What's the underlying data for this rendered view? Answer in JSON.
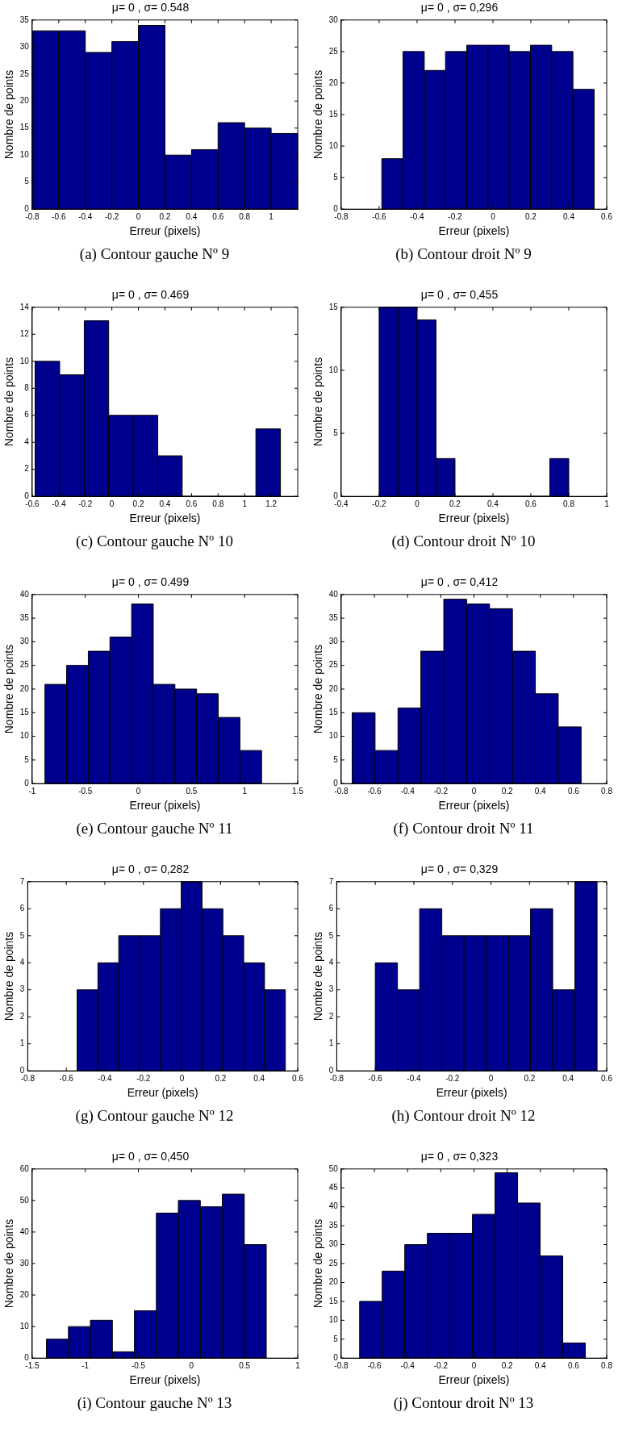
{
  "chart_data": [
    {
      "type": "histogram",
      "title": "μ= 0 , σ= 0.548",
      "xlabel": "Erreur (pixels)",
      "ylabel": "Nombre de points",
      "color": "#00008f",
      "bins": [
        -0.8,
        -0.6,
        -0.4,
        -0.2,
        0,
        0.2,
        0.4,
        0.6,
        0.8,
        1,
        1.2
      ],
      "values": [
        33,
        33,
        29,
        31,
        34,
        10,
        11,
        16,
        15,
        14
      ],
      "xlim": [
        -0.8,
        1.2
      ],
      "xticks": [
        -0.8,
        -0.6,
        -0.4,
        -0.2,
        0,
        0.2,
        0.4,
        0.6,
        0.8,
        1
      ],
      "ylim": [
        0,
        35
      ],
      "yticks": [
        0,
        5,
        10,
        15,
        20,
        25,
        30,
        35
      ],
      "annotations": [
        "(a) Contour gauche Nº 9"
      ]
    },
    {
      "type": "histogram",
      "title": "μ= 0 , σ= 0,296",
      "xlabel": "Erreur (pixels)",
      "ylabel": "Nombre de points",
      "color": "#00008f",
      "bins": [
        -0.586,
        -0.474,
        -0.362,
        -0.25,
        -0.138,
        -0.026,
        0.086,
        0.198,
        0.31,
        0.422,
        0.534
      ],
      "values": [
        8,
        25,
        22,
        25,
        26,
        26,
        25,
        26,
        25,
        19
      ],
      "xlim": [
        -0.8,
        0.6
      ],
      "xticks": [
        -0.8,
        -0.6,
        -0.4,
        -0.2,
        0,
        0.2,
        0.4,
        0.6
      ],
      "ylim": [
        0,
        30
      ],
      "yticks": [
        0,
        5,
        10,
        15,
        20,
        25,
        30
      ],
      "annotations": [
        "(b) Contour droit Nº 9"
      ]
    },
    {
      "type": "histogram",
      "title": "μ= 0 , σ= 0.469",
      "xlabel": "Erreur (pixels)",
      "ylabel": "Nombre de points",
      "color": "#00008f",
      "bins": [
        -0.578,
        -0.393,
        -0.208,
        -0.024,
        0.161,
        0.346,
        0.53,
        0.715,
        0.9,
        1.085,
        1.27
      ],
      "values": [
        10,
        9,
        13,
        6,
        6,
        3,
        0,
        0,
        0,
        5
      ],
      "xlim": [
        -0.6,
        1.4
      ],
      "xticks": [
        -0.6,
        -0.4,
        -0.2,
        0,
        0.2,
        0.4,
        0.6,
        0.8,
        1,
        1.2
      ],
      "ylim": [
        0,
        14
      ],
      "yticks": [
        0,
        2,
        4,
        6,
        8,
        10,
        12,
        14
      ],
      "annotations": [
        "(c) Contour gauche Nº 10"
      ]
    },
    {
      "type": "histogram",
      "title": "μ= 0 , σ= 0,455",
      "xlabel": "Erreur (pixels)",
      "ylabel": "Nombre de points",
      "color": "#00008f",
      "bins": [
        -0.2,
        -0.1,
        0,
        0.1,
        0.2,
        0.3,
        0.4,
        0.5,
        0.6,
        0.7,
        0.8
      ],
      "values": [
        15,
        15,
        14,
        3,
        0,
        0,
        0,
        0,
        0,
        3
      ],
      "xlim": [
        -0.4,
        1
      ],
      "xticks": [
        -0.4,
        -0.2,
        0,
        0.2,
        0.4,
        0.6,
        0.8,
        1
      ],
      "ylim": [
        0,
        15
      ],
      "yticks": [
        0,
        5,
        10,
        15
      ],
      "annotations": [
        "(d) Contour droit Nº 10"
      ]
    },
    {
      "type": "histogram",
      "title": "μ= 0 , σ= 0.499",
      "xlabel": "Erreur (pixels)",
      "ylabel": "Nombre de points",
      "color": "#00008f",
      "bins": [
        -0.88,
        -0.676,
        -0.472,
        -0.268,
        -0.064,
        0.14,
        0.344,
        0.548,
        0.752,
        0.956,
        1.16
      ],
      "values": [
        21,
        25,
        28,
        31,
        38,
        21,
        20,
        19,
        14,
        7
      ],
      "xlim": [
        -1,
        1.5
      ],
      "xticks": [
        -1,
        -0.5,
        0,
        0.5,
        1,
        1.5
      ],
      "ylim": [
        0,
        40
      ],
      "yticks": [
        0,
        5,
        10,
        15,
        20,
        25,
        30,
        35,
        40
      ],
      "annotations": [
        "(e) Contour gauche Nº 11"
      ]
    },
    {
      "type": "histogram",
      "title": "μ= 0 , σ= 0,412",
      "xlabel": "Erreur (pixels)",
      "ylabel": "Nombre de points",
      "color": "#00008f",
      "bins": [
        -0.734,
        -0.596,
        -0.458,
        -0.32,
        -0.182,
        -0.044,
        0.094,
        0.232,
        0.37,
        0.508,
        0.646
      ],
      "values": [
        15,
        7,
        16,
        28,
        39,
        38,
        37,
        28,
        19,
        12
      ],
      "xlim": [
        -0.8,
        0.8
      ],
      "xticks": [
        -0.8,
        -0.6,
        -0.4,
        -0.2,
        0,
        0.2,
        0.4,
        0.6,
        0.8
      ],
      "ylim": [
        0,
        40
      ],
      "yticks": [
        0,
        5,
        10,
        15,
        20,
        25,
        30,
        35,
        40
      ],
      "annotations": [
        "(f) Contour droit Nº 11"
      ]
    },
    {
      "type": "histogram",
      "title": "μ= 0 , σ= 0,282",
      "xlabel": "Erreur (pixels)",
      "ylabel": "Nombre de points",
      "color": "#00008f",
      "bins": [
        -0.544,
        -0.436,
        -0.328,
        -0.22,
        -0.112,
        -0.004,
        0.104,
        0.212,
        0.32,
        0.428,
        0.536
      ],
      "values": [
        3,
        4,
        5,
        5,
        6,
        7,
        6,
        5,
        4,
        3
      ],
      "xlim": [
        -0.8,
        0.6
      ],
      "xticks": [
        -0.8,
        -0.6,
        -0.4,
        -0.2,
        0,
        0.2,
        0.4,
        0.6
      ],
      "ylim": [
        0,
        7
      ],
      "yticks": [
        0,
        1,
        2,
        3,
        4,
        5,
        6,
        7
      ],
      "annotations": [
        "(g) Contour gauche Nº 12"
      ]
    },
    {
      "type": "histogram",
      "title": "μ= 0 , σ= 0,329",
      "xlabel": "Erreur (pixels)",
      "ylabel": "Nombre de points",
      "color": "#00008f",
      "bins": [
        -0.6,
        -0.485,
        -0.37,
        -0.255,
        -0.14,
        -0.025,
        0.09,
        0.205,
        0.32,
        0.435,
        0.55
      ],
      "values": [
        4,
        3,
        6,
        5,
        5,
        5,
        5,
        6,
        3,
        7
      ],
      "xlim": [
        -0.8,
        0.6
      ],
      "xticks": [
        -0.8,
        -0.6,
        -0.4,
        -0.2,
        0,
        0.2,
        0.4,
        0.6
      ],
      "ylim": [
        0,
        7
      ],
      "yticks": [
        0,
        1,
        2,
        3,
        4,
        5,
        6,
        7
      ],
      "annotations": [
        "(h) Contour droit Nº 12"
      ]
    },
    {
      "type": "histogram",
      "title": "μ= 0 , σ= 0,450",
      "xlabel": "Erreur (pixels)",
      "ylabel": "Nombre de points",
      "color": "#00008f",
      "bins": [
        -1.366,
        -1.159,
        -0.952,
        -0.745,
        -0.538,
        -0.331,
        -0.124,
        0.083,
        0.29,
        0.497,
        0.704
      ],
      "values": [
        6,
        10,
        12,
        2,
        15,
        46,
        50,
        48,
        52,
        36
      ],
      "xlim": [
        -1.5,
        1
      ],
      "xticks": [
        -1.5,
        -1,
        -0.5,
        0,
        0.5,
        1
      ],
      "ylim": [
        0,
        60
      ],
      "yticks": [
        0,
        10,
        20,
        30,
        40,
        50,
        60
      ],
      "annotations": [
        "(i) Contour gauche Nº 13"
      ]
    },
    {
      "type": "histogram",
      "title": "μ= 0 , σ= 0,323",
      "xlabel": "Erreur (pixels)",
      "ylabel": "Nombre de points",
      "color": "#00008f",
      "bins": [
        -0.689,
        -0.553,
        -0.417,
        -0.281,
        -0.145,
        -0.009,
        0.127,
        0.263,
        0.399,
        0.535,
        0.671
      ],
      "values": [
        15,
        23,
        30,
        33,
        33,
        38,
        49,
        41,
        27,
        4
      ],
      "xlim": [
        -0.8,
        0.8
      ],
      "xticks": [
        -0.8,
        -0.6,
        -0.4,
        -0.2,
        0,
        0.2,
        0.4,
        0.6,
        0.8
      ],
      "ylim": [
        0,
        50
      ],
      "yticks": [
        0,
        5,
        10,
        15,
        20,
        25,
        30,
        35,
        40,
        45,
        50
      ],
      "annotations": [
        "(j) Contour droit Nº 13"
      ]
    }
  ]
}
